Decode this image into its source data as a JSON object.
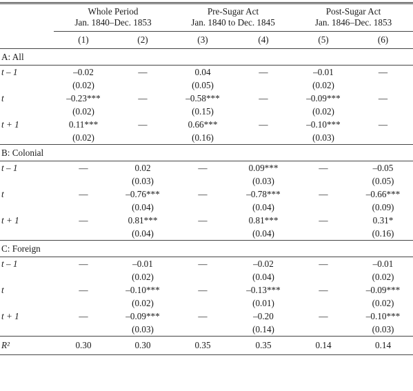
{
  "headers": {
    "groups": [
      {
        "title": "Whole Period",
        "range": "Jan. 1840–Dec. 1853"
      },
      {
        "title": "Pre-Sugar Act",
        "range": "Jan. 1840 to Dec. 1845"
      },
      {
        "title": "Post-Sugar Act",
        "range": "Jan. 1846–Dec. 1853"
      }
    ],
    "cols": [
      "(1)",
      "(2)",
      "(3)",
      "(4)",
      "(5)",
      "(6)"
    ]
  },
  "panels": [
    {
      "title": "A: All",
      "rows": [
        {
          "label": "t – 1",
          "vals": [
            "–0.02",
            "—",
            "0.04",
            "—",
            "–0.01",
            "—"
          ],
          "ses": [
            "(0.02)",
            "",
            "(0.05)",
            "",
            "(0.02)",
            ""
          ]
        },
        {
          "label": "t",
          "vals": [
            "–0.23***",
            "—",
            "–0.58***",
            "—",
            "–0.09***",
            "—"
          ],
          "ses": [
            "(0.02)",
            "",
            "(0.15)",
            "",
            "(0.02)",
            ""
          ]
        },
        {
          "label": "t + 1",
          "vals": [
            "0.11***",
            "—",
            "0.66***",
            "—",
            "–0.10***",
            "—"
          ],
          "ses": [
            "(0.02)",
            "",
            "(0.16)",
            "",
            "(0.03)",
            ""
          ]
        }
      ]
    },
    {
      "title": "B: Colonial",
      "rows": [
        {
          "label": "t – 1",
          "vals": [
            "—",
            "0.02",
            "—",
            "0.09***",
            "—",
            "–0.05"
          ],
          "ses": [
            "",
            "(0.03)",
            "",
            "(0.03)",
            "",
            "(0.05)"
          ]
        },
        {
          "label": "t",
          "vals": [
            "—",
            "–0.76***",
            "—",
            "–0.78***",
            "—",
            "–0.66***"
          ],
          "ses": [
            "",
            "(0.04)",
            "",
            "(0.04)",
            "",
            "(0.09)"
          ]
        },
        {
          "label": "t + 1",
          "vals": [
            "—",
            "0.81***",
            "—",
            "0.81***",
            "—",
            "0.31*"
          ],
          "ses": [
            "",
            "(0.04)",
            "",
            "(0.04)",
            "",
            "(0.16)"
          ]
        }
      ]
    },
    {
      "title": "C: Foreign",
      "rows": [
        {
          "label": "t – 1",
          "vals": [
            "—",
            "–0.01",
            "—",
            "–0.02",
            "—",
            "–0.01"
          ],
          "ses": [
            "",
            "(0.02)",
            "",
            "(0.04)",
            "",
            "(0.02)"
          ]
        },
        {
          "label": "t",
          "vals": [
            "—",
            "–0.10***",
            "—",
            "–0.13***",
            "—",
            "–0.09***"
          ],
          "ses": [
            "",
            "(0.02)",
            "",
            "(0.01)",
            "",
            "(0.02)"
          ]
        },
        {
          "label": "t + 1",
          "vals": [
            "—",
            "–0.09***",
            "—",
            "–0.20",
            "—",
            "–0.10***"
          ],
          "ses": [
            "",
            "(0.03)",
            "",
            "(0.14)",
            "",
            "(0.03)"
          ]
        }
      ]
    }
  ],
  "r2": {
    "label": "R²",
    "vals": [
      "0.30",
      "0.30",
      "0.35",
      "0.35",
      "0.14",
      "0.14"
    ]
  }
}
